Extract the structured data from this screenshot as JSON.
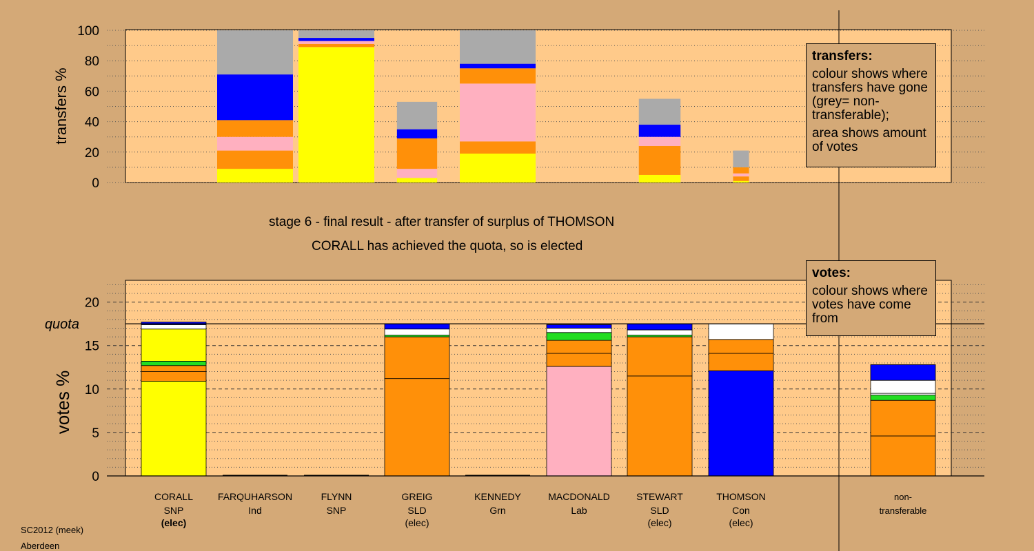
{
  "captions": {
    "stage": "stage 6 - final result - after transfer of surplus of THOMSON",
    "elected": "CORALL has achieved the quota, so is elected"
  },
  "footer": {
    "system": "SC2012 (meek)",
    "ward": "Aberdeen"
  },
  "legend_transfers": {
    "title": "transfers:",
    "line1": "colour shows where transfers have gone (grey= non-transferable);",
    "line2": "area shows amount of votes"
  },
  "legend_votes": {
    "title": "votes:",
    "line1": "colour shows where votes have come from"
  },
  "colors": {
    "background": "#d4a977",
    "plot_bg": "#ffca8a",
    "SNP": "#ffff00",
    "SLD": "#ff9009",
    "Lab": "#ffb0c0",
    "Grn": "#22dd22",
    "Con": "#0000ff",
    "Ind": "#ffffff",
    "nontransferable": "#aaaaaa"
  },
  "candidates": [
    {
      "name": "CORALL",
      "party": "SNP",
      "status": "(elec)"
    },
    {
      "name": "FARQUHARSON",
      "party": "Ind",
      "status": ""
    },
    {
      "name": "FLYNN",
      "party": "SNP",
      "status": ""
    },
    {
      "name": "GREIG",
      "party": "SLD",
      "status": "(elec)"
    },
    {
      "name": "KENNEDY",
      "party": "Grn",
      "status": ""
    },
    {
      "name": "MACDONALD",
      "party": "Lab",
      "status": ""
    },
    {
      "name": "STEWART",
      "party": "SLD",
      "status": "(elec)"
    },
    {
      "name": "THOMSON",
      "party": "Con",
      "status": "(elec)"
    },
    {
      "name": "non-",
      "party": "transferable",
      "status": ""
    }
  ],
  "chart_data": [
    {
      "type": "bar",
      "stacked": true,
      "ylabel": "transfers %",
      "ylim": [
        0,
        100
      ],
      "yticks": [
        0,
        20,
        40,
        60,
        80,
        100
      ],
      "grid": "dotted",
      "columns": [
        {
          "candidate": "CORALL",
          "segments": []
        },
        {
          "candidate": "FARQUHARSON",
          "segments": [
            {
              "color": "SNP",
              "value": 9
            },
            {
              "color": "SLD",
              "value": 12
            },
            {
              "color": "Lab",
              "value": 9
            },
            {
              "color": "SLD",
              "value": 11
            },
            {
              "color": "Con",
              "value": 30
            },
            {
              "color": "nontransferable",
              "value": 29
            }
          ]
        },
        {
          "candidate": "FLYNN",
          "segments": [
            {
              "color": "SNP",
              "value": 89
            },
            {
              "color": "SLD",
              "value": 2
            },
            {
              "color": "Lab",
              "value": 2
            },
            {
              "color": "Con",
              "value": 2
            },
            {
              "color": "nontransferable",
              "value": 5
            }
          ]
        },
        {
          "candidate": "GREIG",
          "segments": [
            {
              "color": "SNP",
              "value": 3
            },
            {
              "color": "Lab",
              "value": 6
            },
            {
              "color": "SLD",
              "value": 20
            },
            {
              "color": "Con",
              "value": 6
            },
            {
              "color": "nontransferable",
              "value": 18
            }
          ]
        },
        {
          "candidate": "KENNEDY",
          "segments": [
            {
              "color": "SNP",
              "value": 19
            },
            {
              "color": "SLD",
              "value": 8
            },
            {
              "color": "Lab",
              "value": 38
            },
            {
              "color": "SLD",
              "value": 10
            },
            {
              "color": "Con",
              "value": 3
            },
            {
              "color": "nontransferable",
              "value": 22
            }
          ]
        },
        {
          "candidate": "MACDONALD",
          "segments": []
        },
        {
          "candidate": "STEWART",
          "segments": [
            {
              "color": "SNP",
              "value": 5
            },
            {
              "color": "SLD",
              "value": 19
            },
            {
              "color": "Lab",
              "value": 6
            },
            {
              "color": "Con",
              "value": 8
            },
            {
              "color": "nontransferable",
              "value": 17
            }
          ]
        },
        {
          "candidate": "THOMSON",
          "segments": [
            {
              "color": "SNP",
              "value": 1
            },
            {
              "color": "SLD",
              "value": 3
            },
            {
              "color": "Lab",
              "value": 2
            },
            {
              "color": "SLD",
              "value": 4
            },
            {
              "color": "nontransferable",
              "value": 11
            }
          ]
        },
        {
          "candidate": "non-transferable",
          "segments": []
        }
      ]
    },
    {
      "type": "bar",
      "stacked": true,
      "ylabel": "votes %",
      "ylim": [
        0,
        22.5
      ],
      "yticks": [
        0,
        5,
        10,
        15,
        20
      ],
      "quota": 17.5,
      "quota_label": "quota",
      "grid": "dashed",
      "columns": [
        {
          "candidate": "CORALL",
          "segments": [
            {
              "color": "SNP",
              "value": 10.9
            },
            {
              "color": "SLD",
              "value": 1.1
            },
            {
              "color": "SLD",
              "value": 0.7
            },
            {
              "color": "Grn",
              "value": 0.5
            },
            {
              "color": "SNP",
              "value": 3.7
            },
            {
              "color": "Ind",
              "value": 0.5
            },
            {
              "color": "Con",
              "value": 0.3
            }
          ]
        },
        {
          "candidate": "FARQUHARSON",
          "segments": []
        },
        {
          "candidate": "FLYNN",
          "segments": []
        },
        {
          "candidate": "GREIG",
          "segments": [
            {
              "color": "SLD",
              "value": 11.2
            },
            {
              "color": "SLD",
              "value": 4.8
            },
            {
              "color": "Grn",
              "value": 0.2
            },
            {
              "color": "Ind",
              "value": 0.7
            },
            {
              "color": "Con",
              "value": 0.6
            }
          ]
        },
        {
          "candidate": "KENNEDY",
          "segments": []
        },
        {
          "candidate": "MACDONALD",
          "segments": [
            {
              "color": "Lab",
              "value": 12.6
            },
            {
              "color": "SLD",
              "value": 1.5
            },
            {
              "color": "SLD",
              "value": 1.5
            },
            {
              "color": "Grn",
              "value": 0.9
            },
            {
              "color": "Ind",
              "value": 0.5
            },
            {
              "color": "Con",
              "value": 0.4
            }
          ]
        },
        {
          "candidate": "STEWART",
          "segments": [
            {
              "color": "SLD",
              "value": 11.5
            },
            {
              "color": "SLD",
              "value": 4.5
            },
            {
              "color": "Grn",
              "value": 0.2
            },
            {
              "color": "Ind",
              "value": 0.6
            },
            {
              "color": "Con",
              "value": 0.7
            }
          ]
        },
        {
          "candidate": "THOMSON",
          "segments": [
            {
              "color": "Con",
              "value": 12.1
            },
            {
              "color": "SLD",
              "value": 2
            },
            {
              "color": "SLD",
              "value": 1.6
            },
            {
              "color": "Ind",
              "value": 1.8
            }
          ]
        },
        {
          "candidate": "non-transferable",
          "segments": [
            {
              "color": "SLD",
              "value": 4.6
            },
            {
              "color": "SLD",
              "value": 4.1
            },
            {
              "color": "Grn",
              "value": 0.6
            },
            {
              "color": "Ind",
              "value": 0.2
            },
            {
              "color": "Ind",
              "value": 1.5
            },
            {
              "color": "Con",
              "value": 1.8
            }
          ]
        }
      ]
    }
  ]
}
